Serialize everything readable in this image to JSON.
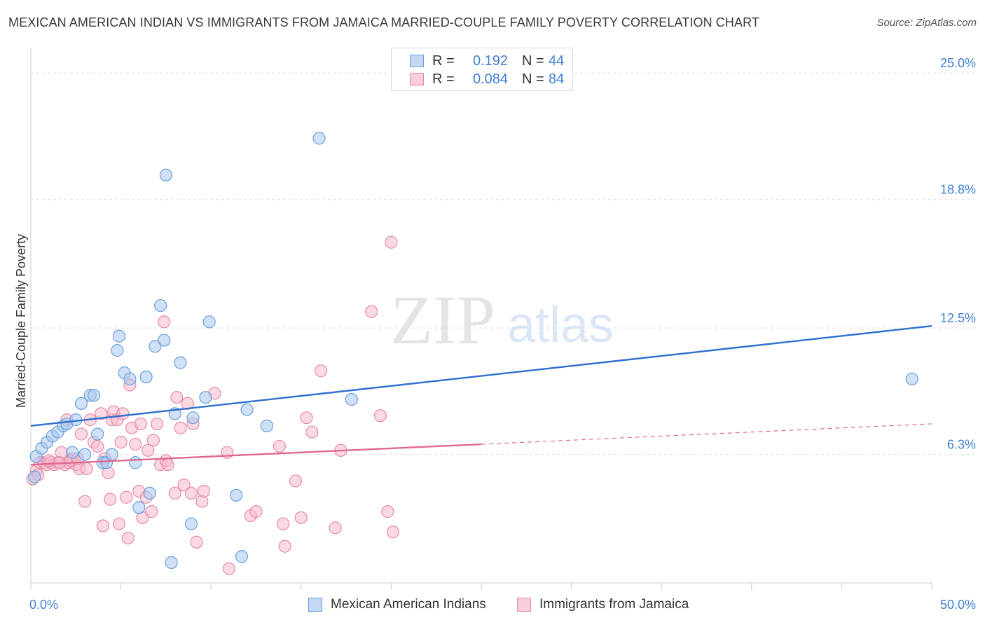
{
  "title": "MEXICAN AMERICAN INDIAN VS IMMIGRANTS FROM JAMAICA MARRIED-COUPLE FAMILY POVERTY CORRELATION CHART",
  "source": "Source: ZipAtlas.com",
  "watermark": {
    "zip": "ZIP",
    "atlas": "atlas"
  },
  "legend_top": {
    "rows": [
      {
        "r_label": "R =",
        "r_value": "0.192",
        "n_label": "N =",
        "n_value": "44"
      },
      {
        "r_label": "R =",
        "r_value": "0.084",
        "n_label": "N =",
        "n_value": "84"
      }
    ]
  },
  "legend_bottom": {
    "series1": "Mexican American Indians",
    "series2": "Immigrants from Jamaica"
  },
  "colors": {
    "blue_fill": "#a9c8f0",
    "blue_stroke": "#6a9fdc",
    "blue_line": "#2f6fd0",
    "pink_fill": "#f6b9cc",
    "pink_stroke": "#e88aa8",
    "pink_line": "#e0688e",
    "tick_label": "#3f7fd4",
    "grid": "#dddddd"
  },
  "chart_data": {
    "type": "scatter",
    "title": "MEXICAN AMERICAN INDIAN VS IMMIGRANTS FROM JAMAICA MARRIED-COUPLE FAMILY POVERTY CORRELATION CHART",
    "xlabel": "",
    "ylabel": "Married-Couple Family Poverty",
    "xlim": [
      0,
      50
    ],
    "ylim": [
      0,
      25.9
    ],
    "x_tick_labels": [
      "0.0%",
      "50.0%"
    ],
    "y_ticks": [
      6.3,
      12.5,
      18.8,
      25.0
    ],
    "y_tick_labels": [
      "6.3%",
      "12.5%",
      "18.8%",
      "25.0%"
    ],
    "grid": true,
    "series": [
      {
        "name": "Mexican American Indians",
        "r": 0.192,
        "n": 44,
        "trend": {
          "x": [
            0,
            50
          ],
          "y": [
            7.7,
            12.6
          ]
        },
        "points": [
          [
            0.3,
            6.2
          ],
          [
            0.6,
            6.6
          ],
          [
            0.9,
            6.9
          ],
          [
            1.2,
            7.2
          ],
          [
            1.5,
            7.4
          ],
          [
            1.8,
            7.7
          ],
          [
            2.0,
            7.8
          ],
          [
            2.3,
            6.4
          ],
          [
            2.5,
            8.0
          ],
          [
            2.8,
            8.8
          ],
          [
            3.0,
            6.3
          ],
          [
            3.3,
            9.2
          ],
          [
            3.5,
            9.2
          ],
          [
            3.7,
            7.3
          ],
          [
            4.0,
            5.9
          ],
          [
            4.2,
            5.9
          ],
          [
            4.5,
            6.3
          ],
          [
            4.8,
            11.4
          ],
          [
            4.9,
            12.1
          ],
          [
            5.2,
            10.3
          ],
          [
            5.5,
            10.0
          ],
          [
            5.8,
            5.9
          ],
          [
            6.0,
            3.7
          ],
          [
            6.4,
            10.1
          ],
          [
            6.6,
            4.4
          ],
          [
            6.9,
            11.6
          ],
          [
            7.2,
            13.6
          ],
          [
            7.4,
            11.9
          ],
          [
            7.5,
            20.0
          ],
          [
            7.8,
            1.0
          ],
          [
            8.0,
            8.3
          ],
          [
            8.3,
            10.8
          ],
          [
            8.9,
            2.9
          ],
          [
            9.0,
            8.1
          ],
          [
            9.7,
            9.1
          ],
          [
            9.9,
            12.8
          ],
          [
            11.4,
            4.3
          ],
          [
            11.7,
            1.3
          ],
          [
            12.0,
            8.5
          ],
          [
            13.1,
            7.7
          ],
          [
            16.0,
            21.8
          ],
          [
            17.8,
            9.0
          ],
          [
            48.9,
            10.0
          ],
          [
            0.2,
            5.2
          ]
        ]
      },
      {
        "name": "Immigrants from Jamaica",
        "r": 0.084,
        "n": 84,
        "trend": {
          "x": [
            0,
            25
          ],
          "y": [
            5.8,
            6.8
          ]
        },
        "trend_extension": {
          "x": [
            25,
            50
          ],
          "y": [
            6.8,
            7.8
          ]
        },
        "points": [
          [
            0.1,
            5.1
          ],
          [
            0.3,
            5.5
          ],
          [
            0.5,
            5.9
          ],
          [
            0.7,
            5.9
          ],
          [
            0.9,
            5.8
          ],
          [
            1.1,
            5.9
          ],
          [
            1.3,
            5.8
          ],
          [
            1.5,
            5.9
          ],
          [
            1.7,
            6.4
          ],
          [
            1.9,
            5.8
          ],
          [
            2.0,
            8.0
          ],
          [
            2.1,
            5.9
          ],
          [
            2.3,
            6.1
          ],
          [
            2.5,
            5.8
          ],
          [
            2.7,
            5.6
          ],
          [
            2.8,
            7.3
          ],
          [
            3.0,
            4.0
          ],
          [
            3.1,
            5.6
          ],
          [
            3.3,
            8.0
          ],
          [
            3.5,
            6.9
          ],
          [
            3.7,
            6.7
          ],
          [
            3.9,
            8.3
          ],
          [
            4.0,
            2.8
          ],
          [
            4.1,
            6.1
          ],
          [
            4.3,
            5.4
          ],
          [
            4.4,
            4.1
          ],
          [
            4.5,
            8.0
          ],
          [
            4.6,
            8.4
          ],
          [
            4.8,
            8.0
          ],
          [
            4.9,
            2.9
          ],
          [
            5.0,
            6.9
          ],
          [
            5.1,
            8.3
          ],
          [
            5.3,
            4.2
          ],
          [
            5.4,
            2.2
          ],
          [
            5.5,
            9.7
          ],
          [
            5.6,
            7.6
          ],
          [
            5.8,
            6.8
          ],
          [
            6.0,
            4.5
          ],
          [
            6.1,
            7.8
          ],
          [
            6.2,
            3.2
          ],
          [
            6.4,
            4.2
          ],
          [
            6.5,
            6.5
          ],
          [
            6.7,
            3.5
          ],
          [
            6.8,
            7.0
          ],
          [
            7.0,
            7.8
          ],
          [
            7.2,
            5.8
          ],
          [
            7.4,
            12.8
          ],
          [
            7.5,
            6.0
          ],
          [
            7.6,
            5.8
          ],
          [
            8.0,
            4.4
          ],
          [
            8.1,
            9.1
          ],
          [
            8.3,
            7.6
          ],
          [
            8.5,
            4.8
          ],
          [
            8.7,
            8.8
          ],
          [
            8.9,
            4.4
          ],
          [
            9.0,
            7.8
          ],
          [
            9.2,
            2.0
          ],
          [
            9.5,
            4.0
          ],
          [
            9.6,
            4.5
          ],
          [
            10.2,
            9.3
          ],
          [
            10.9,
            6.4
          ],
          [
            11.0,
            0.7
          ],
          [
            12.2,
            3.3
          ],
          [
            12.5,
            3.5
          ],
          [
            13.8,
            6.7
          ],
          [
            14.0,
            2.9
          ],
          [
            14.1,
            1.8
          ],
          [
            14.7,
            5.0
          ],
          [
            15.0,
            3.2
          ],
          [
            15.3,
            8.1
          ],
          [
            15.6,
            7.4
          ],
          [
            16.1,
            10.4
          ],
          [
            16.9,
            2.7
          ],
          [
            17.2,
            6.5
          ],
          [
            18.9,
            13.3
          ],
          [
            19.4,
            8.2
          ],
          [
            19.8,
            3.5
          ],
          [
            20.1,
            2.5
          ],
          [
            20.0,
            16.7
          ],
          [
            1.0,
            6.0
          ],
          [
            1.6,
            5.9
          ],
          [
            2.2,
            6.0
          ],
          [
            0.4,
            5.3
          ],
          [
            2.6,
            6.1
          ]
        ]
      }
    ]
  }
}
